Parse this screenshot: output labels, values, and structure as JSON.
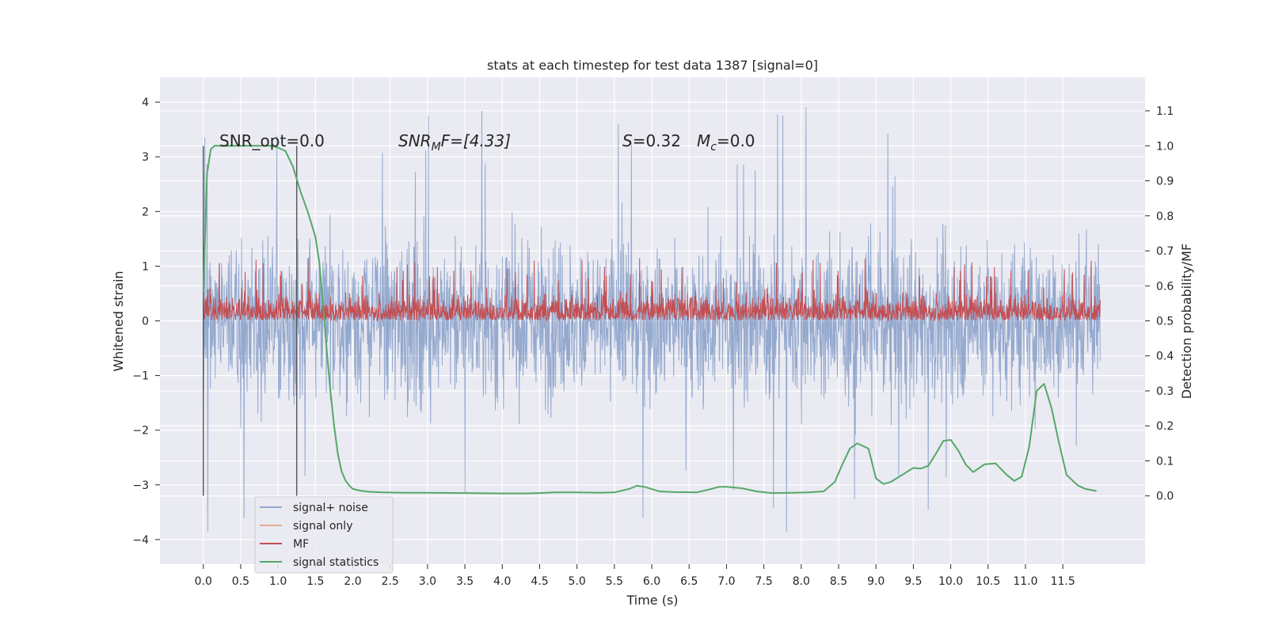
{
  "chart_data": {
    "type": "line",
    "title": "stats at each timestep for test data 1387 [signal=0]",
    "xlabel": "Time (s)",
    "ylabel": "Whitened strain",
    "y2label": "Detection probability/MF",
    "xlim": [
      -0.58,
      12.6
    ],
    "ylim": [
      -4.45,
      4.45
    ],
    "y2lim": [
      -0.195,
      1.195
    ],
    "x_ticks": [
      "0.0",
      "0.5",
      "1.0",
      "1.5",
      "2.0",
      "2.5",
      "3.0",
      "3.5",
      "4.0",
      "4.5",
      "5.0",
      "5.5",
      "6.0",
      "6.5",
      "7.0",
      "7.5",
      "8.0",
      "8.5",
      "9.0",
      "9.5",
      "10.0",
      "10.5",
      "11.0",
      "11.5"
    ],
    "y_ticks": [
      "4",
      "3",
      "2",
      "1",
      "0",
      "−1",
      "−2",
      "−3",
      "−4"
    ],
    "y2_ticks": [
      "1.1",
      "1.0",
      "0.9",
      "0.8",
      "0.7",
      "0.6",
      "0.5",
      "0.4",
      "0.3",
      "0.2",
      "0.1",
      "0.0"
    ],
    "grid": true,
    "legend_position": "lower left",
    "annotations": {
      "snr_opt": "SNR_opt=0.0",
      "snr_mf_main": "SNR",
      "snr_mf_sub": "M",
      "snr_mf_rest": "F=[4.33]",
      "s_main": "S",
      "s_rest": "=0.32",
      "mc_main": "M",
      "mc_sub": "c",
      "mc_rest": "=0.0"
    },
    "markers": {
      "vlines_x": [
        0.0,
        1.25
      ],
      "vlines_ymin": -3.2,
      "vlines_ymax": 3.2
    },
    "series": [
      {
        "name": "signal+ noise",
        "color": "#4c72b0",
        "style": "noise band",
        "x_range": [
          0.0,
          12.0
        ],
        "typical_range": [
          -1.3,
          1.3
        ],
        "extremes": [
          -4.1,
          4.1
        ]
      },
      {
        "name": "signal only",
        "color": "#dd8452",
        "style": "flat (zero signal)",
        "value": 0
      },
      {
        "name": "MF",
        "color": "#c44e52",
        "style": "noise band (right axis)",
        "x_range": [
          0.0,
          12.0
        ],
        "typical_range": [
          0.5,
          0.6
        ],
        "extremes": [
          0.5,
          0.68
        ]
      },
      {
        "name": "signal statistics",
        "color": "#55a868",
        "style": "line (right axis)",
        "x": [
          0.0,
          0.05,
          0.1,
          0.15,
          0.2,
          0.3,
          0.5,
          0.7,
          0.9,
          1.0,
          1.1,
          1.2,
          1.3,
          1.4,
          1.5,
          1.55,
          1.6,
          1.65,
          1.7,
          1.75,
          1.8,
          1.85,
          1.9,
          1.95,
          2.0,
          2.1,
          2.2,
          2.4,
          2.7,
          3.0,
          3.5,
          4.0,
          4.3,
          4.5,
          4.7,
          5.0,
          5.3,
          5.5,
          5.7,
          5.8,
          5.9,
          6.1,
          6.3,
          6.6,
          6.8,
          6.9,
          7.0,
          7.2,
          7.4,
          7.6,
          7.9,
          8.1,
          8.3,
          8.45,
          8.55,
          8.65,
          8.75,
          8.9,
          9.0,
          9.1,
          9.2,
          9.35,
          9.5,
          9.6,
          9.7,
          9.8,
          9.9,
          10.0,
          10.1,
          10.2,
          10.3,
          10.45,
          10.6,
          10.75,
          10.85,
          10.95,
          11.05,
          11.15,
          11.25,
          11.35,
          11.45,
          11.55,
          11.7,
          11.8,
          11.95
        ],
        "y": [
          0.58,
          0.92,
          0.99,
          1.0,
          1.0,
          1.0,
          1.0,
          1.0,
          1.0,
          0.995,
          0.985,
          0.94,
          0.87,
          0.81,
          0.74,
          0.67,
          0.55,
          0.42,
          0.3,
          0.2,
          0.12,
          0.07,
          0.045,
          0.03,
          0.02,
          0.015,
          0.012,
          0.01,
          0.009,
          0.009,
          0.008,
          0.007,
          0.007,
          0.008,
          0.01,
          0.01,
          0.009,
          0.01,
          0.02,
          0.029,
          0.026,
          0.013,
          0.011,
          0.01,
          0.02,
          0.026,
          0.026,
          0.022,
          0.013,
          0.008,
          0.009,
          0.01,
          0.013,
          0.04,
          0.09,
          0.135,
          0.15,
          0.135,
          0.05,
          0.034,
          0.04,
          0.06,
          0.08,
          0.078,
          0.086,
          0.12,
          0.157,
          0.16,
          0.13,
          0.09,
          0.068,
          0.09,
          0.093,
          0.06,
          0.043,
          0.055,
          0.14,
          0.3,
          0.32,
          0.25,
          0.15,
          0.06,
          0.03,
          0.02,
          0.014
        ]
      }
    ]
  }
}
